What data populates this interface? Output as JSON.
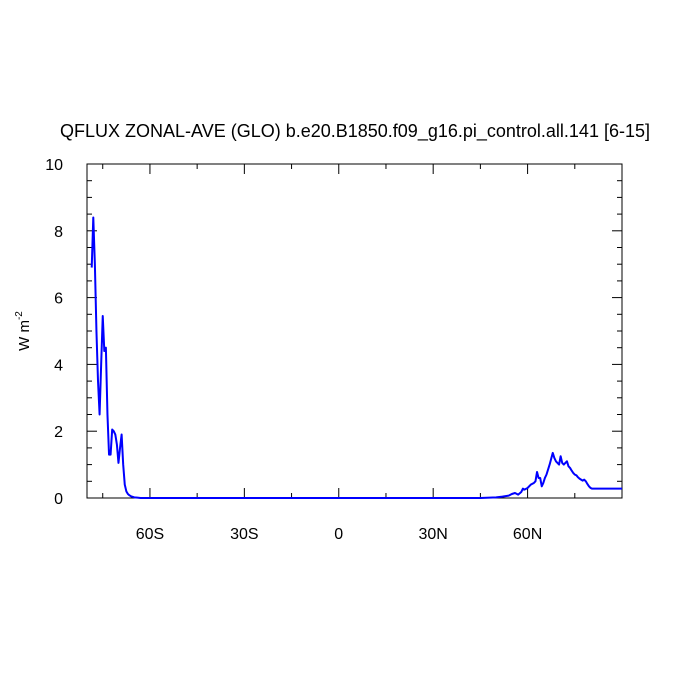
{
  "chart_data": {
    "type": "line",
    "title": "QFLUX ZONAL-AVE (GLO) b.e20.B1850.f09_g16.pi_control.all.141 [6-15]",
    "ylabel": "W m",
    "ylabel_superscript": "-2",
    "xlabel": "",
    "xlim": [
      -80,
      90
    ],
    "ylim": [
      0,
      10
    ],
    "grid": false,
    "legend": "none",
    "line_color": "#0000ff",
    "x_ticks": [
      {
        "value": -60,
        "label": "60S"
      },
      {
        "value": -30,
        "label": "30S"
      },
      {
        "value": 0,
        "label": "0"
      },
      {
        "value": 30,
        "label": "30N"
      },
      {
        "value": 60,
        "label": "60N"
      }
    ],
    "y_ticks": [
      {
        "value": 0,
        "label": "0"
      },
      {
        "value": 2,
        "label": "2"
      },
      {
        "value": 4,
        "label": "4"
      },
      {
        "value": 6,
        "label": "6"
      },
      {
        "value": 8,
        "label": "8"
      },
      {
        "value": 10,
        "label": "10"
      }
    ],
    "series": [
      {
        "x": [
          -78.5,
          -78,
          -77.5,
          -77,
          -76.5,
          -76,
          -75.5,
          -75,
          -74.5,
          -74,
          -73.5,
          -73,
          -72.5,
          -72,
          -71.5,
          -71,
          -70.5,
          -70,
          -69.5,
          -69,
          -68.5,
          -68,
          -67.5,
          -67,
          -66.5,
          -66,
          -65,
          -64,
          -63,
          -62,
          -61,
          -60,
          -55,
          -50,
          -40,
          -30,
          -20,
          -10,
          0,
          10,
          20,
          30,
          40,
          45,
          48,
          50,
          52,
          54,
          55,
          56,
          57,
          58,
          58.5,
          59,
          60,
          60.5,
          61,
          62,
          62.5,
          63,
          63.5,
          64,
          64.5,
          65,
          65.5,
          66,
          67,
          68,
          68.5,
          69,
          69.5,
          70,
          70.5,
          71,
          71.5,
          72,
          72.5,
          73,
          73.5,
          74,
          74.5,
          75,
          75.5,
          76,
          76.5,
          77,
          77.5,
          78,
          78.5,
          79,
          79.5,
          80,
          80.5,
          81,
          81.5,
          82,
          82.5,
          83,
          83.5,
          84,
          84.5,
          85,
          86,
          87,
          88,
          89,
          90
        ],
        "values": [
          6.9,
          8.4,
          7.0,
          5.0,
          3.5,
          2.5,
          4.0,
          5.45,
          4.4,
          4.5,
          2.5,
          1.3,
          1.3,
          2.05,
          2.0,
          1.9,
          1.6,
          1.05,
          1.5,
          1.9,
          1.0,
          0.4,
          0.2,
          0.12,
          0.08,
          0.05,
          0.02,
          0.01,
          0.0,
          0.0,
          0.0,
          0.0,
          0.0,
          0.0,
          0.0,
          0.0,
          0.0,
          0.0,
          0.0,
          0.0,
          0.0,
          0.0,
          0.0,
          0.0,
          0.01,
          0.02,
          0.04,
          0.07,
          0.12,
          0.15,
          0.1,
          0.18,
          0.28,
          0.25,
          0.3,
          0.35,
          0.4,
          0.45,
          0.5,
          0.78,
          0.6,
          0.6,
          0.35,
          0.45,
          0.6,
          0.7,
          1.0,
          1.35,
          1.2,
          1.1,
          1.05,
          1.0,
          1.25,
          1.05,
          1.0,
          1.05,
          1.1,
          0.95,
          0.9,
          0.82,
          0.75,
          0.7,
          0.68,
          0.62,
          0.58,
          0.55,
          0.52,
          0.55,
          0.5,
          0.42,
          0.35,
          0.3,
          0.28,
          0.28,
          0.28,
          0.28,
          0.28,
          0.28,
          0.28,
          0.28,
          0.28,
          0.28,
          0.28,
          0.28,
          0.28,
          0.28,
          0.28
        ]
      }
    ]
  }
}
